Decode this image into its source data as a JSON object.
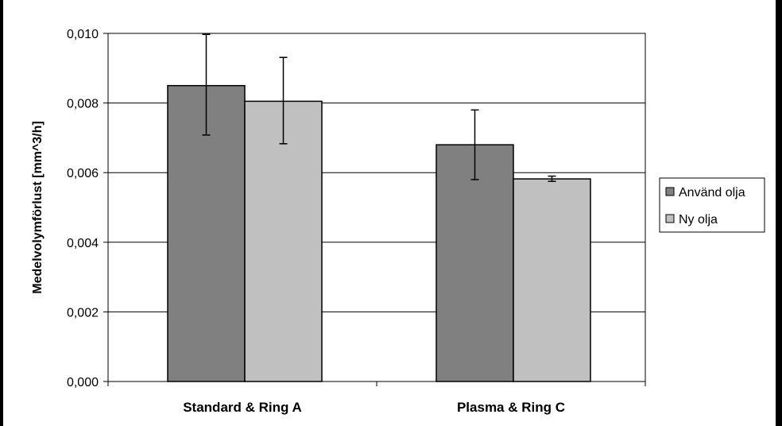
{
  "chart_data": {
    "type": "bar",
    "categories": [
      "Standard & Ring A",
      "Plasma & Ring C"
    ],
    "series": [
      {
        "name": "Använd olja",
        "values": [
          0.0085,
          0.0068
        ],
        "error_low": [
          0.00708,
          0.0058
        ],
        "error_high": [
          0.00997,
          0.0078
        ],
        "color": "#808080"
      },
      {
        "name": "Ny olja",
        "values": [
          0.00805,
          0.00582
        ],
        "error_low": [
          0.00683,
          0.00575
        ],
        "error_high": [
          0.00931,
          0.0059
        ],
        "color": "#c0c0c0"
      }
    ],
    "ylabel": "Medelvolymförlust [mm^3/h]",
    "xlabel": "",
    "ylim": [
      0,
      0.01
    ],
    "yticks": [
      "0,000",
      "0,002",
      "0,004",
      "0,006",
      "0,008",
      "0,010"
    ],
    "grid": true,
    "legend_position": "right"
  }
}
